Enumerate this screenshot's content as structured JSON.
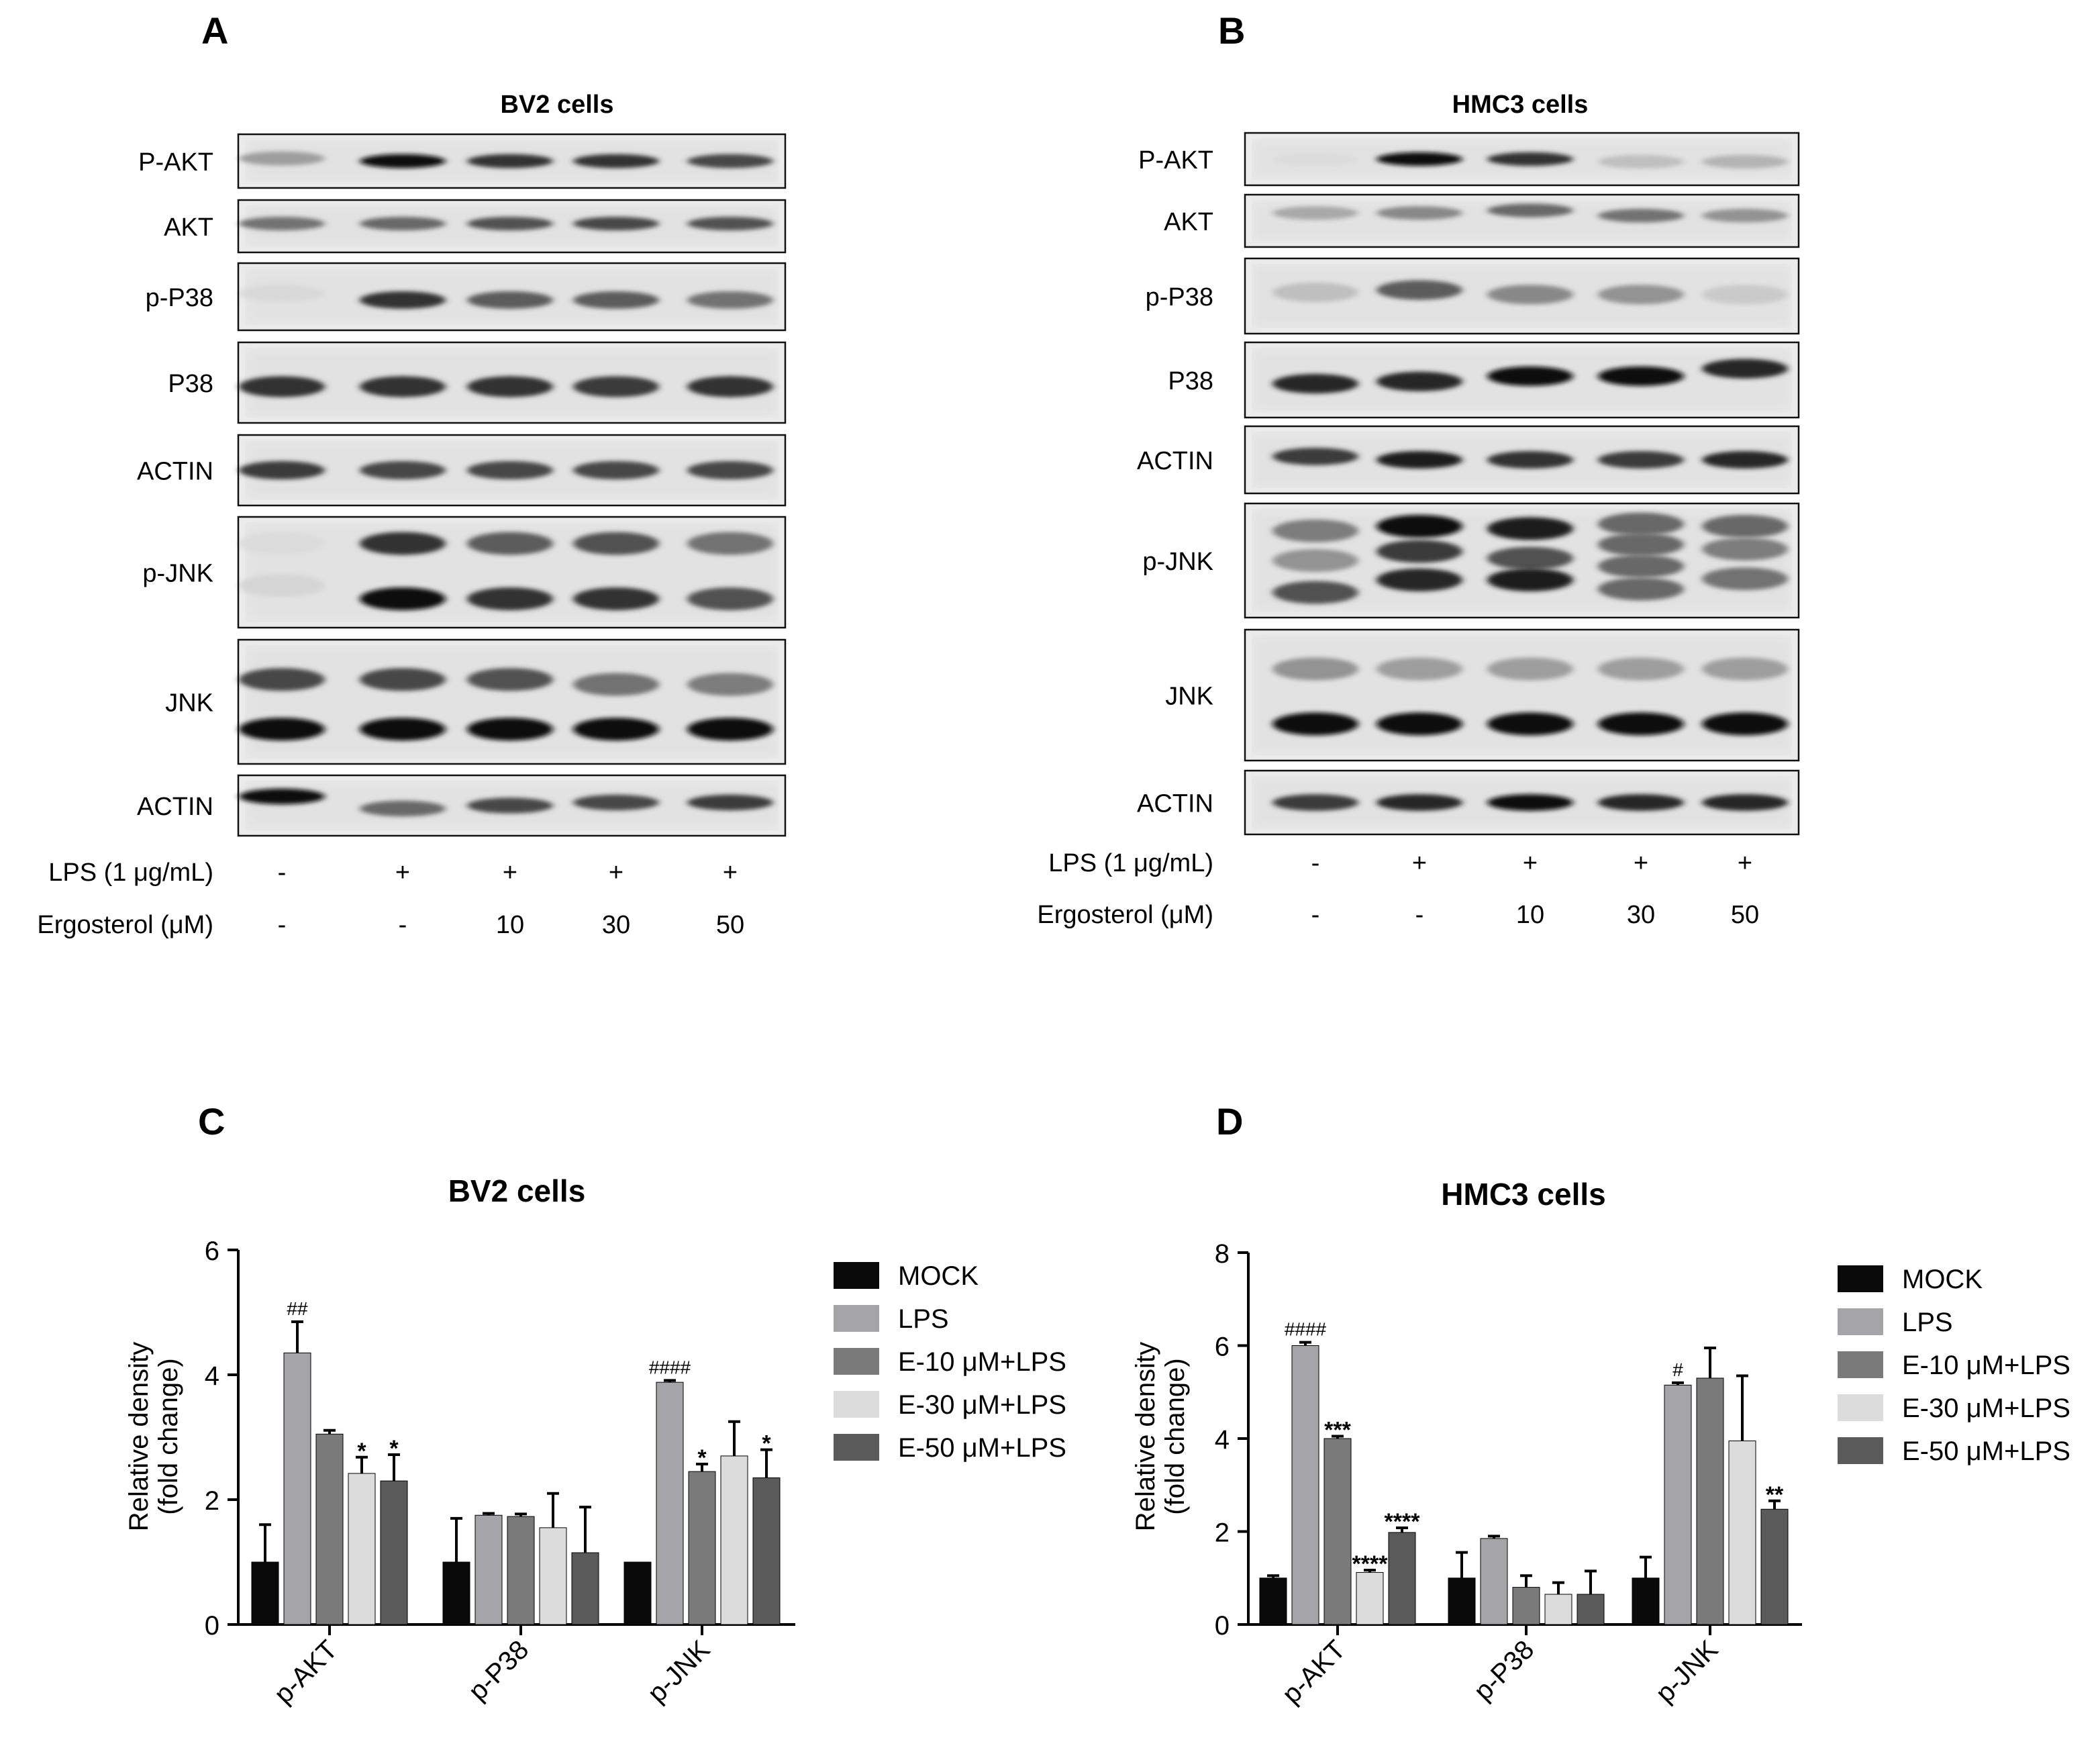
{
  "panels": [
    {
      "letter": "A",
      "title": "BV2 cells",
      "proteins": [
        "P-AKT",
        "AKT",
        "p-P38",
        "P38",
        "ACTIN",
        "p-JNK",
        "JNK",
        "ACTIN"
      ],
      "treatments": [
        {
          "label": "LPS (1 μg/mL)",
          "values": [
            "-",
            "+",
            "+",
            "+",
            "+"
          ]
        },
        {
          "label": "Ergosterol (μM)",
          "values": [
            "-",
            "-",
            "10",
            "30",
            "50"
          ]
        }
      ]
    },
    {
      "letter": "B",
      "title": "HMC3 cells",
      "proteins": [
        "P-AKT",
        "AKT",
        "p-P38",
        "P38",
        "ACTIN",
        "p-JNK",
        "JNK",
        "ACTIN"
      ],
      "treatments": [
        {
          "label": "LPS (1 μg/mL)",
          "values": [
            "-",
            "+",
            "+",
            "+",
            "+"
          ]
        },
        {
          "label": "Ergosterol (μM)",
          "values": [
            "-",
            "-",
            "10",
            "30",
            "50"
          ]
        }
      ]
    }
  ],
  "legend": {
    "colors": [
      "#0a0a0a",
      "#a5a5a9",
      "#7a7a7a",
      "#dcdcdc",
      "#5a5a5a"
    ]
  },
  "chart_data": [
    {
      "letter": "C",
      "type": "bar",
      "title": "BV2 cells",
      "ylabel": "Relative density (fold change)",
      "ylabel_lines": [
        "Relative density",
        "(fold change)"
      ],
      "ylim": [
        0,
        6
      ],
      "yticks": [
        0,
        2,
        4,
        6
      ],
      "categories": [
        "p-AKT",
        "p-P38",
        "p-JNK"
      ],
      "series": [
        {
          "name": "MOCK",
          "values": [
            1.0,
            1.0,
            1.0
          ],
          "errors": [
            0.6,
            0.7,
            0.0
          ],
          "annotations": [
            "",
            "",
            ""
          ]
        },
        {
          "name": "LPS",
          "values": [
            4.35,
            1.75,
            3.88
          ],
          "errors": [
            0.5,
            0.03,
            0.03
          ],
          "annotations": [
            "##",
            "",
            "####"
          ]
        },
        {
          "name": "E-10 μM+LPS",
          "values": [
            3.05,
            1.73,
            2.45
          ],
          "errors": [
            0.06,
            0.04,
            0.12
          ],
          "annotations": [
            "",
            "",
            "*"
          ]
        },
        {
          "name": "E-30 μM+LPS",
          "values": [
            2.42,
            1.55,
            2.7
          ],
          "errors": [
            0.26,
            0.55,
            0.55
          ],
          "annotations": [
            "*",
            "",
            ""
          ]
        },
        {
          "name": "E-50 μM+LPS",
          "values": [
            2.3,
            1.15,
            2.35
          ],
          "errors": [
            0.42,
            0.73,
            0.45
          ],
          "annotations": [
            "*",
            "",
            "*"
          ]
        }
      ]
    },
    {
      "letter": "D",
      "type": "bar",
      "title": "HMC3 cells",
      "ylabel": "Relative density (fold change)",
      "ylabel_lines": [
        "Relative density",
        "(fold change)"
      ],
      "ylim": [
        0,
        8
      ],
      "yticks": [
        0,
        2,
        4,
        6,
        8
      ],
      "categories": [
        "p-AKT",
        "p-P38",
        "p-JNK"
      ],
      "series": [
        {
          "name": "MOCK",
          "values": [
            1.0,
            1.0,
            1.0
          ],
          "errors": [
            0.05,
            0.55,
            0.45
          ],
          "annotations": [
            "",
            "",
            ""
          ]
        },
        {
          "name": "LPS",
          "values": [
            6.0,
            1.85,
            5.15
          ],
          "errors": [
            0.07,
            0.05,
            0.05
          ],
          "annotations": [
            "####",
            "",
            "#"
          ]
        },
        {
          "name": "E-10 μM+LPS",
          "values": [
            4.0,
            0.8,
            5.3
          ],
          "errors": [
            0.05,
            0.25,
            0.65
          ],
          "annotations": [
            "***",
            "",
            ""
          ]
        },
        {
          "name": "E-30 μM+LPS",
          "values": [
            1.12,
            0.65,
            3.95
          ],
          "errors": [
            0.05,
            0.25,
            1.4
          ],
          "annotations": [
            "****",
            "",
            ""
          ]
        },
        {
          "name": "E-50 μM+LPS",
          "values": [
            1.98,
            0.65,
            2.48
          ],
          "errors": [
            0.1,
            0.5,
            0.18
          ],
          "annotations": [
            "****",
            "",
            "**"
          ]
        }
      ]
    }
  ]
}
